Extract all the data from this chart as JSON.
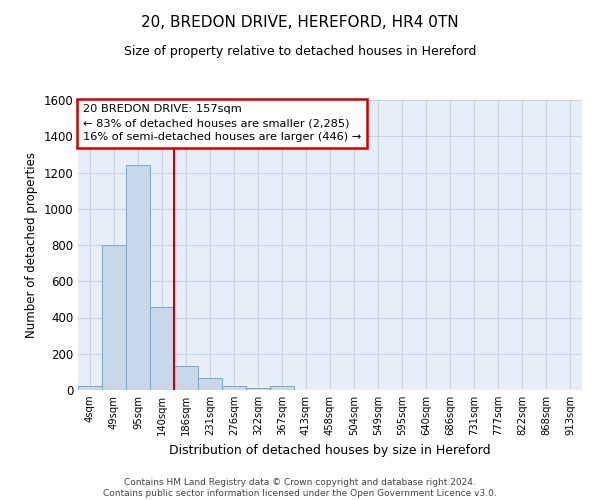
{
  "title": "20, BREDON DRIVE, HEREFORD, HR4 0TN",
  "subtitle": "Size of property relative to detached houses in Hereford",
  "xlabel": "Distribution of detached houses by size in Hereford",
  "ylabel": "Number of detached properties",
  "bar_labels": [
    "4sqm",
    "49sqm",
    "95sqm",
    "140sqm",
    "186sqm",
    "231sqm",
    "276sqm",
    "322sqm",
    "367sqm",
    "413sqm",
    "458sqm",
    "504sqm",
    "549sqm",
    "595sqm",
    "640sqm",
    "686sqm",
    "731sqm",
    "777sqm",
    "822sqm",
    "868sqm",
    "913sqm"
  ],
  "bar_heights": [
    20,
    800,
    1240,
    460,
    130,
    65,
    20,
    10,
    20,
    0,
    0,
    0,
    0,
    0,
    0,
    0,
    0,
    0,
    0,
    0,
    0
  ],
  "bar_color": "#c8d8ea",
  "bar_edge_color": "#7aaac8",
  "red_line_x": 3.5,
  "ylim": [
    0,
    1600
  ],
  "yticks": [
    0,
    200,
    400,
    600,
    800,
    1000,
    1200,
    1400,
    1600
  ],
  "annotation_line1": "20 BREDON DRIVE: 157sqm",
  "annotation_line2": "← 83% of detached houses are smaller (2,285)",
  "annotation_line3": "16% of semi-detached houses are larger (446) →",
  "annotation_box_color": "#ffffff",
  "annotation_box_edge": "#cc0000",
  "footer_text": "Contains HM Land Registry data © Crown copyright and database right 2024.\nContains public sector information licensed under the Open Government Licence v3.0.",
  "grid_color": "#c8d4e4",
  "background_color": "#e8eef8"
}
